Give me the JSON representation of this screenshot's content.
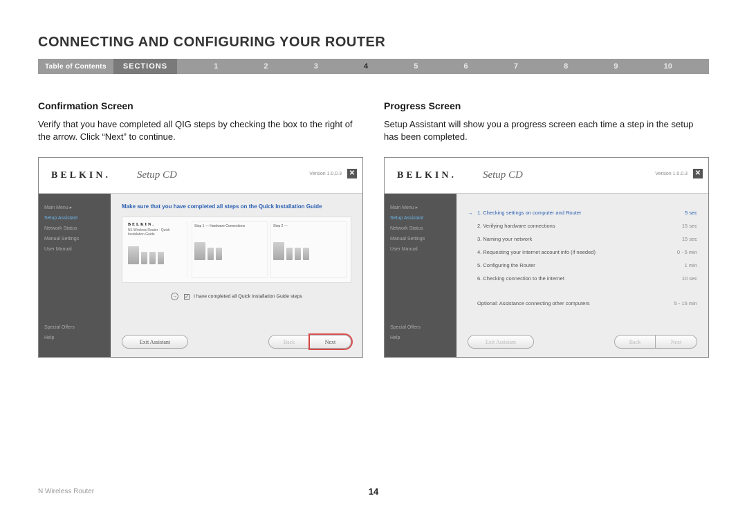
{
  "page": {
    "title": "CONNECTING AND CONFIGURING YOUR ROUTER",
    "toc_label": "Table of Contents",
    "sections_label": "SECTIONS",
    "section_numbers": [
      "1",
      "2",
      "3",
      "4",
      "5",
      "6",
      "7",
      "8",
      "9",
      "10"
    ],
    "active_section_index": 3,
    "footer_product": "N Wireless Router",
    "page_number": "14"
  },
  "left": {
    "heading": "Confirmation Screen",
    "body": "Verify that you have completed all QIG steps by checking the box to the right of the arrow. Click “Next” to continue."
  },
  "right": {
    "heading": "Progress Screen",
    "body": "Setup Assistant will show you a progress screen each time a step in the setup has been completed."
  },
  "app": {
    "logo": "BELKIN.",
    "product": "Setup CD",
    "version": "Version 1.0.0.3",
    "close": "✕",
    "sidebar": {
      "main_menu": "Main Menu  ▸",
      "setup_assistant": "Setup Assistant",
      "network_status": "Network Status",
      "manual_settings": "Manual Settings",
      "user_manual": "User Manual",
      "special_offers": "Special Offers",
      "help": "Help"
    },
    "confirmation": {
      "instruction": "Make sure that you have completed all steps on the Quick Installation Guide",
      "qig_sub": "N1 Wireless Router · Quick Installation Guide",
      "step1": "Step 1 — Hardware Connections",
      "step2": "Step 2 —",
      "checkbox_label": "I have completed all Quick Installation Guide steps"
    },
    "progress": {
      "items": [
        {
          "label": "1. Checking settings on computer and Router",
          "time": "5 sec",
          "active": true
        },
        {
          "label": "2. Verifying hardware connections",
          "time": "15 sec"
        },
        {
          "label": "3. Naming your network",
          "time": "15 sec"
        },
        {
          "label": "4. Requesting your Internet account info (if needed)",
          "time": "0 - 5 min"
        },
        {
          "label": "5. Configuring the Router",
          "time": "1 min"
        },
        {
          "label": "6. Checking connection to the internet",
          "time": "10 sec"
        }
      ],
      "optional_label": "Optional: Assistance connecting other computers",
      "optional_time": "5 - 15 min"
    },
    "buttons": {
      "exit": "Exit Assistant",
      "back": "Back",
      "next": "Next"
    }
  },
  "colors": {
    "nav_bg": "#9b9b9b",
    "nav_sections_bg": "#7a7a7a",
    "active_section": "#2b2b2b",
    "sidebar_bg": "#555555",
    "sidebar_active": "#6bb5e8",
    "instruction_blue": "#2a5fb0",
    "highlight_red": "#d62626",
    "screenshot_bg": "#ededee"
  }
}
